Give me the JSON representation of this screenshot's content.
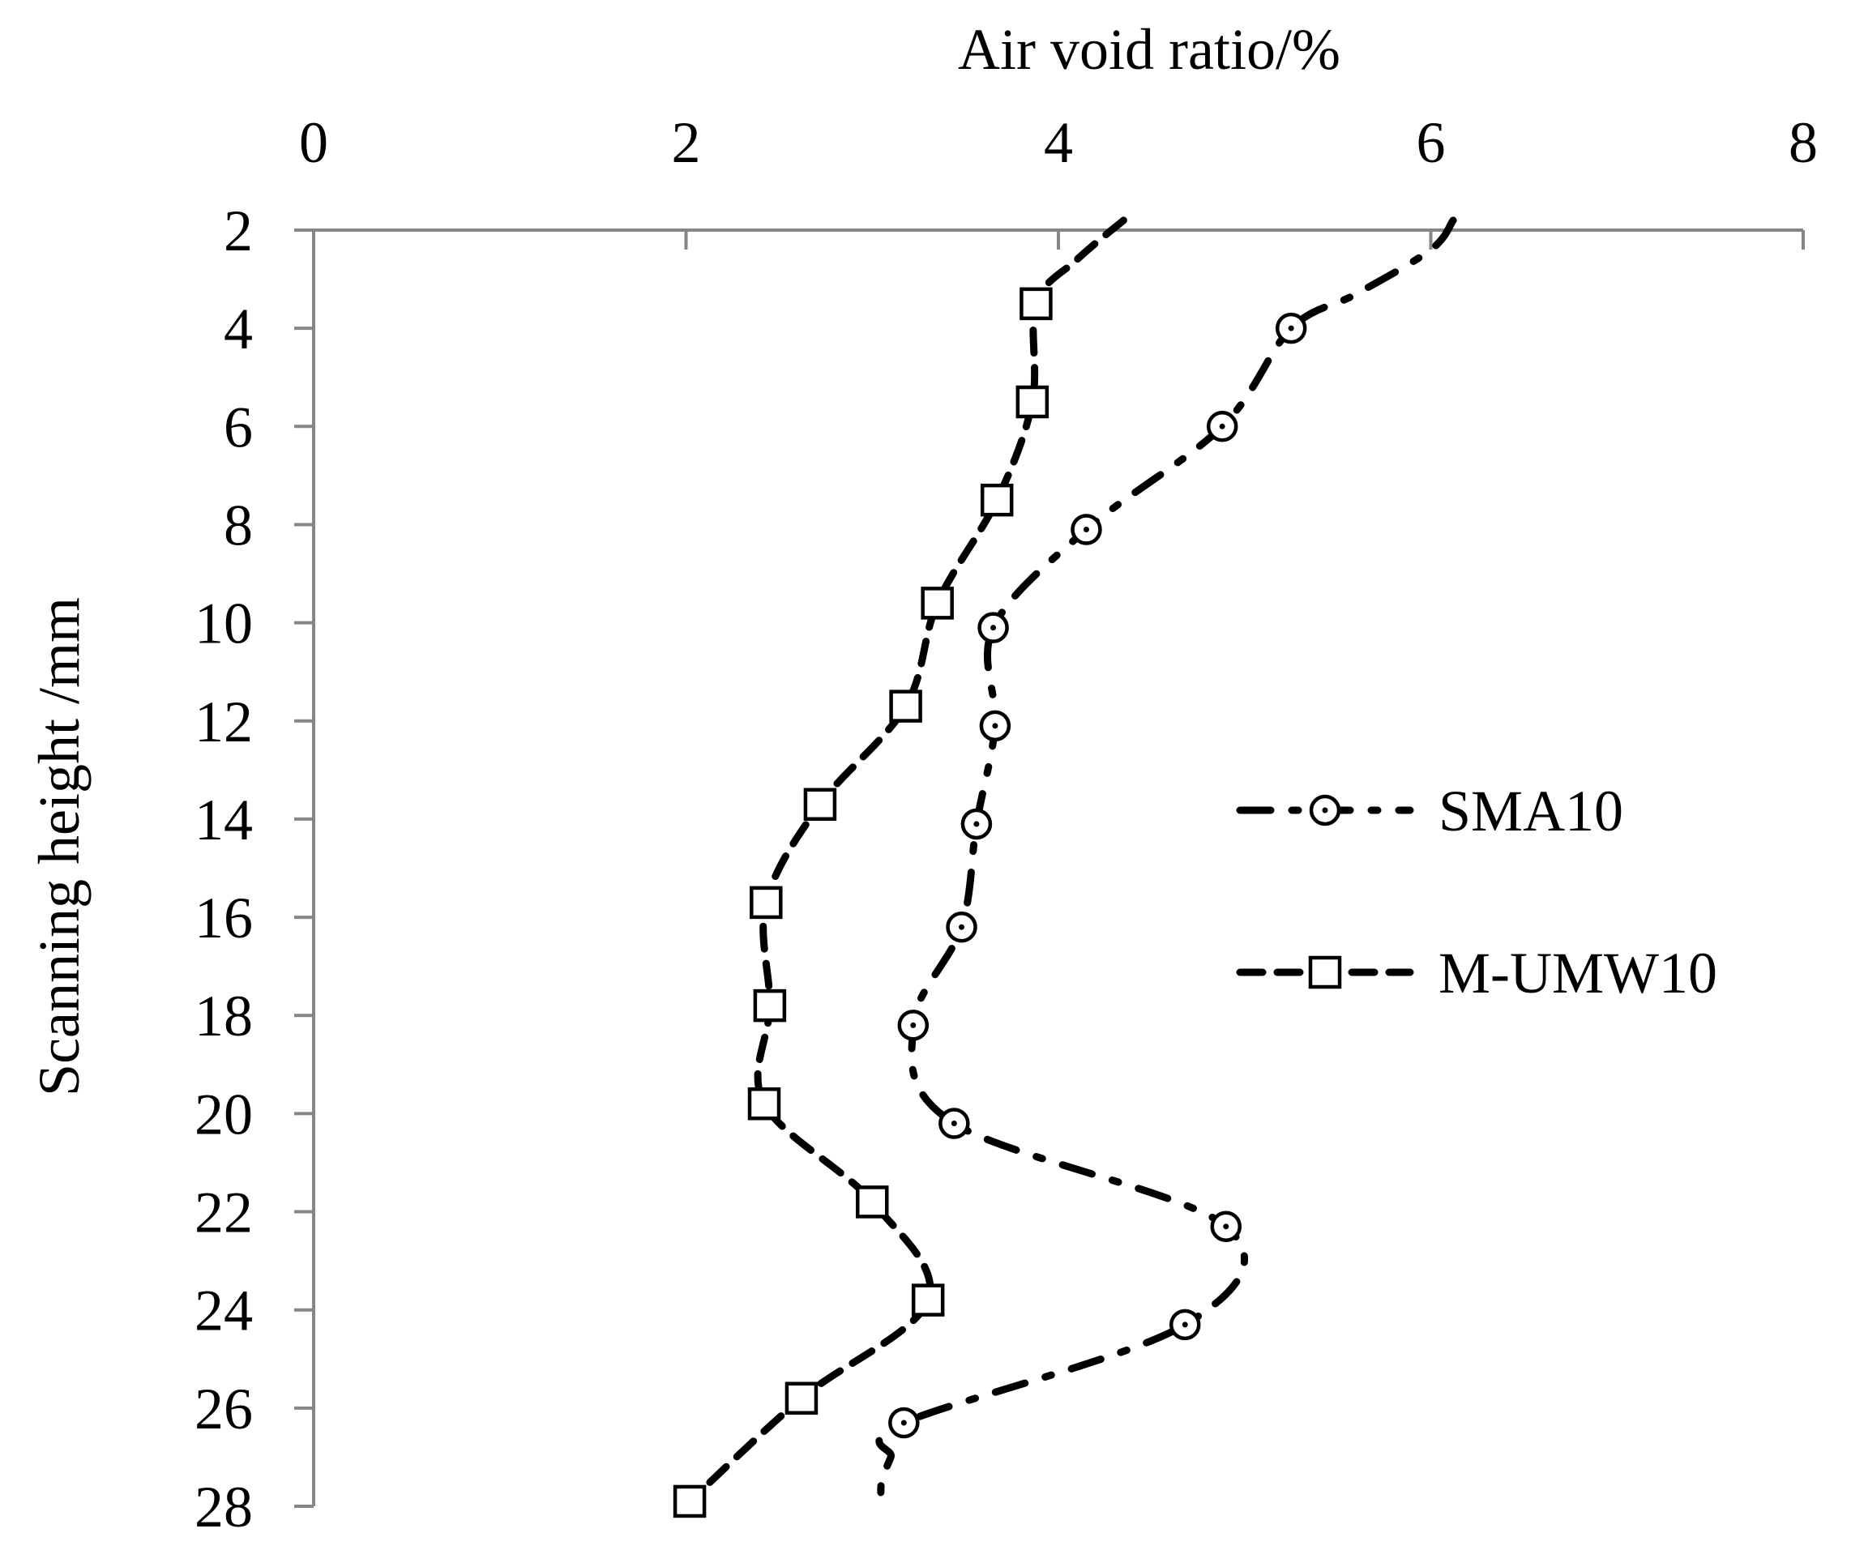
{
  "chart_data": {
    "type": "line",
    "xlabel": "Air void ratio/%",
    "ylabel": "Scanning height /mm",
    "xlim": [
      0,
      8
    ],
    "ylim": [
      2,
      28
    ],
    "y_reversed": true,
    "x_axis_position": "top",
    "xticks": [
      "0",
      "2",
      "4",
      "6",
      "8"
    ],
    "yticks": [
      "2",
      "4",
      "6",
      "8",
      "10",
      "12",
      "14",
      "16",
      "18",
      "20",
      "22",
      "24",
      "26",
      "28"
    ],
    "grid": false,
    "legend_position": "right",
    "series": [
      {
        "name": "SMA10",
        "marker": "circle",
        "line_style": "dash-dot",
        "points": [
          [
            5.25,
            4.0
          ],
          [
            4.88,
            6.0
          ],
          [
            4.15,
            8.1
          ],
          [
            3.65,
            10.1
          ],
          [
            3.66,
            12.1
          ],
          [
            3.56,
            14.1
          ],
          [
            3.48,
            16.2
          ],
          [
            3.22,
            18.2
          ],
          [
            3.44,
            20.2
          ],
          [
            4.9,
            22.3
          ],
          [
            4.68,
            24.3
          ],
          [
            3.17,
            26.3
          ]
        ],
        "tail_points": [
          [
            3.05,
            28.0
          ],
          [
            3.05,
            27.5
          ],
          [
            3.1,
            27.0
          ]
        ],
        "lead_points": [
          [
            6.12,
            1.8
          ],
          [
            6.0,
            2.4
          ],
          [
            5.6,
            3.3
          ]
        ]
      },
      {
        "name": "M-UMW10",
        "marker": "square",
        "line_style": "dashed",
        "points": [
          [
            3.88,
            3.5
          ],
          [
            3.86,
            5.5
          ],
          [
            3.67,
            7.5
          ],
          [
            3.35,
            9.6
          ],
          [
            3.18,
            11.7
          ],
          [
            2.72,
            13.7
          ],
          [
            2.43,
            15.7
          ],
          [
            2.45,
            17.8
          ],
          [
            2.42,
            19.8
          ],
          [
            3.0,
            21.8
          ],
          [
            3.3,
            23.8
          ],
          [
            2.62,
            25.8
          ],
          [
            2.02,
            27.9
          ]
        ],
        "lead_points": [
          [
            4.35,
            1.8
          ],
          [
            4.1,
            2.6
          ]
        ]
      }
    ]
  }
}
